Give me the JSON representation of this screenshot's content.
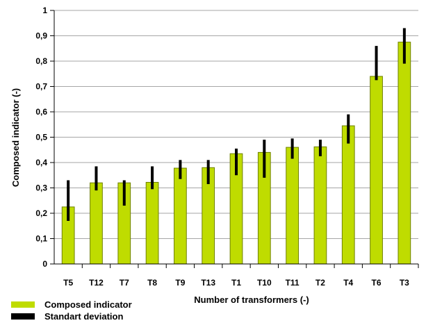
{
  "chart_data": {
    "type": "bar",
    "xlabel": "Number of transformers (-)",
    "ylabel": "Composed indicator (-)",
    "ylim": [
      0,
      1
    ],
    "yticks": [
      "0",
      "0,1",
      "0,2",
      "0,3",
      "0,4",
      "0,5",
      "0,6",
      "0,7",
      "0,8",
      "0,9",
      "1"
    ],
    "grid": true,
    "categories": [
      "T5",
      "T12",
      "T7",
      "T8",
      "T9",
      "T13",
      "T1",
      "T10",
      "T11",
      "T2",
      "T4",
      "T6",
      "T3"
    ],
    "series": [
      {
        "name": "Composed indicator",
        "values": [
          0.225,
          0.32,
          0.32,
          0.322,
          0.378,
          0.38,
          0.435,
          0.44,
          0.46,
          0.462,
          0.545,
          0.74,
          0.875
        ]
      }
    ],
    "error_bars": {
      "name": "Standart deviation",
      "low": [
        0.17,
        0.29,
        0.23,
        0.295,
        0.335,
        0.315,
        0.35,
        0.34,
        0.415,
        0.425,
        0.475,
        0.725,
        0.79
      ],
      "high": [
        0.33,
        0.385,
        0.33,
        0.385,
        0.41,
        0.41,
        0.455,
        0.49,
        0.495,
        0.49,
        0.59,
        0.86,
        0.93
      ]
    },
    "legend": {
      "position": "bottom-left",
      "items": [
        "Composed indicator",
        "Standart deviation"
      ]
    },
    "colors": {
      "bar_fill": "#bfdc00",
      "bar_stroke": "#6f8000",
      "error": "#000000",
      "grid": "#a6a6a6"
    }
  }
}
